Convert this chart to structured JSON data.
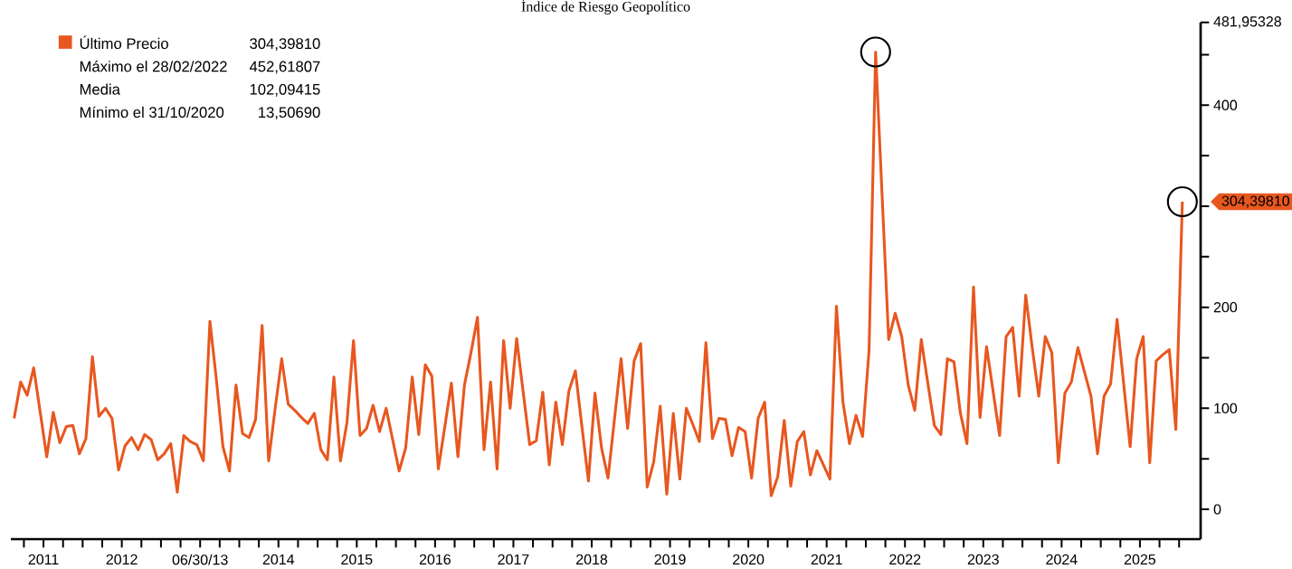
{
  "chart_data": {
    "type": "line",
    "title": "Índice de Riesgo Geopolítico",
    "x": [
      "2011-02",
      "2011-03",
      "2011-04",
      "2011-05",
      "2011-06",
      "2011-07",
      "2011-08",
      "2011-09",
      "2011-10",
      "2011-11",
      "2011-12",
      "2012-01",
      "2012-02",
      "2012-03",
      "2012-04",
      "2012-05",
      "2012-06",
      "2012-07",
      "2012-08",
      "2012-09",
      "2012-10",
      "2012-11",
      "2012-12",
      "2013-01",
      "2013-02",
      "2013-03",
      "2013-04",
      "2013-05",
      "2013-06",
      "2013-07",
      "2013-08",
      "2013-09",
      "2013-10",
      "2013-11",
      "2013-12",
      "2014-01",
      "2014-02",
      "2014-03",
      "2014-04",
      "2014-05",
      "2014-06",
      "2014-07",
      "2014-08",
      "2014-09",
      "2014-10",
      "2014-11",
      "2014-12",
      "2015-01",
      "2015-02",
      "2015-03",
      "2015-04",
      "2015-05",
      "2015-06",
      "2015-07",
      "2015-08",
      "2015-09",
      "2015-10",
      "2015-11",
      "2015-12",
      "2016-01",
      "2016-02",
      "2016-03",
      "2016-04",
      "2016-05",
      "2016-06",
      "2016-07",
      "2016-08",
      "2016-09",
      "2016-10",
      "2016-11",
      "2016-12",
      "2017-01",
      "2017-02",
      "2017-03",
      "2017-04",
      "2017-05",
      "2017-06",
      "2017-07",
      "2017-08",
      "2017-09",
      "2017-10",
      "2017-11",
      "2017-12",
      "2018-01",
      "2018-02",
      "2018-03",
      "2018-04",
      "2018-05",
      "2018-06",
      "2018-07",
      "2018-08",
      "2018-09",
      "2018-10",
      "2018-11",
      "2018-12",
      "2019-01",
      "2019-02",
      "2019-03",
      "2019-04",
      "2019-05",
      "2019-06",
      "2019-07",
      "2019-08",
      "2019-09",
      "2019-10",
      "2019-11",
      "2019-12",
      "2020-01",
      "2020-02",
      "2020-03",
      "2020-04",
      "2020-05",
      "2020-06",
      "2020-07",
      "2020-08",
      "2020-09",
      "2020-10",
      "2020-11",
      "2020-12",
      "2021-01",
      "2021-02",
      "2021-03",
      "2021-04",
      "2021-05",
      "2021-06",
      "2021-07",
      "2021-08",
      "2021-09",
      "2021-10",
      "2021-11",
      "2021-12",
      "2022-01",
      "2022-02",
      "2022-03",
      "2022-04",
      "2022-05",
      "2022-06",
      "2022-07",
      "2022-08",
      "2022-09",
      "2022-10",
      "2022-11",
      "2022-12",
      "2023-01",
      "2023-02",
      "2023-03",
      "2023-04",
      "2023-05",
      "2023-06",
      "2023-07",
      "2023-08",
      "2023-09",
      "2023-10",
      "2023-11",
      "2023-12",
      "2024-01",
      "2024-02",
      "2024-03",
      "2024-04",
      "2024-05",
      "2024-06",
      "2024-07",
      "2024-08",
      "2024-09",
      "2024-10",
      "2024-11",
      "2024-12",
      "2025-01",
      "2025-02",
      "2025-03",
      "2025-04",
      "2025-05",
      "2025-06",
      "2025-07",
      "2025-08",
      "2025-09",
      "2025-10",
      "2025-11",
      "2025-12",
      "2026-01"
    ],
    "series": [
      {
        "name": "Último Precio",
        "color": "#e8571f",
        "values": [
          90,
          126,
          113,
          140,
          96,
          52,
          96,
          66,
          82,
          83,
          55,
          70,
          151,
          92,
          100,
          90,
          39,
          63,
          71,
          59,
          74,
          69,
          49,
          55,
          65,
          17,
          73,
          67,
          64,
          48,
          186,
          128,
          62,
          38,
          123,
          75,
          71,
          89,
          182,
          48,
          100,
          149,
          104,
          98,
          91,
          85,
          95,
          59,
          49,
          131,
          48,
          86,
          167,
          73,
          80,
          103,
          77,
          100,
          69,
          38,
          61,
          131,
          74,
          143,
          132,
          40,
          82,
          125,
          52,
          123,
          155,
          190,
          59,
          126,
          40,
          167,
          100,
          169,
          116,
          64,
          68,
          116,
          44,
          106,
          64,
          117,
          137,
          82,
          28,
          115,
          61,
          31,
          90,
          149,
          80,
          147,
          164,
          22,
          47,
          102,
          15,
          95,
          30,
          100,
          84,
          67,
          165,
          70,
          90,
          89,
          53,
          81,
          77,
          31,
          90,
          106,
          13.5069,
          32,
          88,
          23,
          67,
          77,
          34,
          58,
          44,
          30,
          201,
          106,
          65,
          93,
          72,
          158,
          452.61807,
          310,
          168,
          194,
          171,
          123,
          98,
          168,
          125,
          83,
          74,
          149,
          146,
          95,
          65,
          220,
          91,
          161,
          117,
          73,
          171,
          180,
          112,
          212,
          160,
          112,
          171,
          155,
          46,
          115,
          126,
          160,
          136,
          112,
          55,
          112,
          124,
          188,
          125,
          62,
          149,
          171,
          46,
          147,
          153,
          158,
          79,
          304.3981
        ]
      }
    ],
    "xlim": [
      "2011-02-01",
      "2026-04-10"
    ],
    "xticks": [
      {
        "value": "2011-04-01",
        "label": null
      },
      {
        "value": "2011-07-01",
        "label": "2011"
      },
      {
        "value": "2011-10-01",
        "label": null
      },
      {
        "value": "2012-01-01",
        "label": null
      },
      {
        "value": "2012-04-01",
        "label": null
      },
      {
        "value": "2012-07-01",
        "label": "2012"
      },
      {
        "value": "2012-10-01",
        "label": null
      },
      {
        "value": "2013-01-01",
        "label": null
      },
      {
        "value": "2013-04-01",
        "label": null
      },
      {
        "value": "2013-07-01",
        "label": "06/30/13"
      },
      {
        "value": "2013-10-01",
        "label": null
      },
      {
        "value": "2014-01-01",
        "label": null
      },
      {
        "value": "2014-04-01",
        "label": null
      },
      {
        "value": "2014-07-01",
        "label": "2014"
      },
      {
        "value": "2014-10-01",
        "label": null
      },
      {
        "value": "2015-01-01",
        "label": null
      },
      {
        "value": "2015-04-01",
        "label": null
      },
      {
        "value": "2015-07-01",
        "label": "2015"
      },
      {
        "value": "2015-10-01",
        "label": null
      },
      {
        "value": "2016-01-01",
        "label": null
      },
      {
        "value": "2016-04-01",
        "label": null
      },
      {
        "value": "2016-07-01",
        "label": "2016"
      },
      {
        "value": "2016-10-01",
        "label": null
      },
      {
        "value": "2017-01-01",
        "label": null
      },
      {
        "value": "2017-04-01",
        "label": null
      },
      {
        "value": "2017-07-01",
        "label": "2017"
      },
      {
        "value": "2017-10-01",
        "label": null
      },
      {
        "value": "2018-01-01",
        "label": null
      },
      {
        "value": "2018-04-01",
        "label": null
      },
      {
        "value": "2018-07-01",
        "label": "2018"
      },
      {
        "value": "2018-10-01",
        "label": null
      },
      {
        "value": "2019-01-01",
        "label": null
      },
      {
        "value": "2019-04-01",
        "label": null
      },
      {
        "value": "2019-07-01",
        "label": "2019"
      },
      {
        "value": "2019-10-01",
        "label": null
      },
      {
        "value": "2020-01-01",
        "label": null
      },
      {
        "value": "2020-04-01",
        "label": null
      },
      {
        "value": "2020-07-01",
        "label": "2020"
      },
      {
        "value": "2020-10-01",
        "label": null
      },
      {
        "value": "2021-01-01",
        "label": null
      },
      {
        "value": "2021-04-01",
        "label": null
      },
      {
        "value": "2021-07-01",
        "label": "2021"
      },
      {
        "value": "2021-10-01",
        "label": null
      },
      {
        "value": "2022-01-01",
        "label": null
      },
      {
        "value": "2022-04-01",
        "label": null
      },
      {
        "value": "2022-07-01",
        "label": "2022"
      },
      {
        "value": "2022-10-01",
        "label": null
      },
      {
        "value": "2023-01-01",
        "label": null
      },
      {
        "value": "2023-04-01",
        "label": null
      },
      {
        "value": "2023-07-01",
        "label": "2023"
      },
      {
        "value": "2023-10-01",
        "label": null
      },
      {
        "value": "2024-01-01",
        "label": null
      },
      {
        "value": "2024-04-01",
        "label": null
      },
      {
        "value": "2024-07-01",
        "label": "2024"
      },
      {
        "value": "2024-10-01",
        "label": null
      },
      {
        "value": "2025-01-01",
        "label": null
      },
      {
        "value": "2025-04-01",
        "label": null
      },
      {
        "value": "2025-07-01",
        "label": "2025"
      },
      {
        "value": "2025-10-01",
        "label": null
      },
      {
        "value": "2026-01-01",
        "label": null
      }
    ],
    "ylim": [
      -29.5,
      481.95328
    ],
    "yticks": [
      0,
      {
        "value": 50,
        "label": null
      },
      100,
      {
        "value": 150,
        "label": null
      },
      200,
      {
        "value": 250,
        "label": null
      },
      {
        "value": 300,
        "label": null
      },
      {
        "value": 350,
        "label": null
      },
      400,
      {
        "value": 450,
        "label": null
      },
      {
        "value": 481.95328,
        "label": "481,95328"
      }
    ],
    "legend": "top left",
    "marker": "none",
    "line_style": "solid",
    "annotations": [
      "304,39810",
      "Máximo el 28/02/2022",
      "452,61807",
      "Media",
      "102,09415",
      "Mínimo el 31/10/2020",
      "13,50690",
      {
        "text": "304,39810",
        "x": "2026-01",
        "y": 304.3981
      }
    ]
  }
}
